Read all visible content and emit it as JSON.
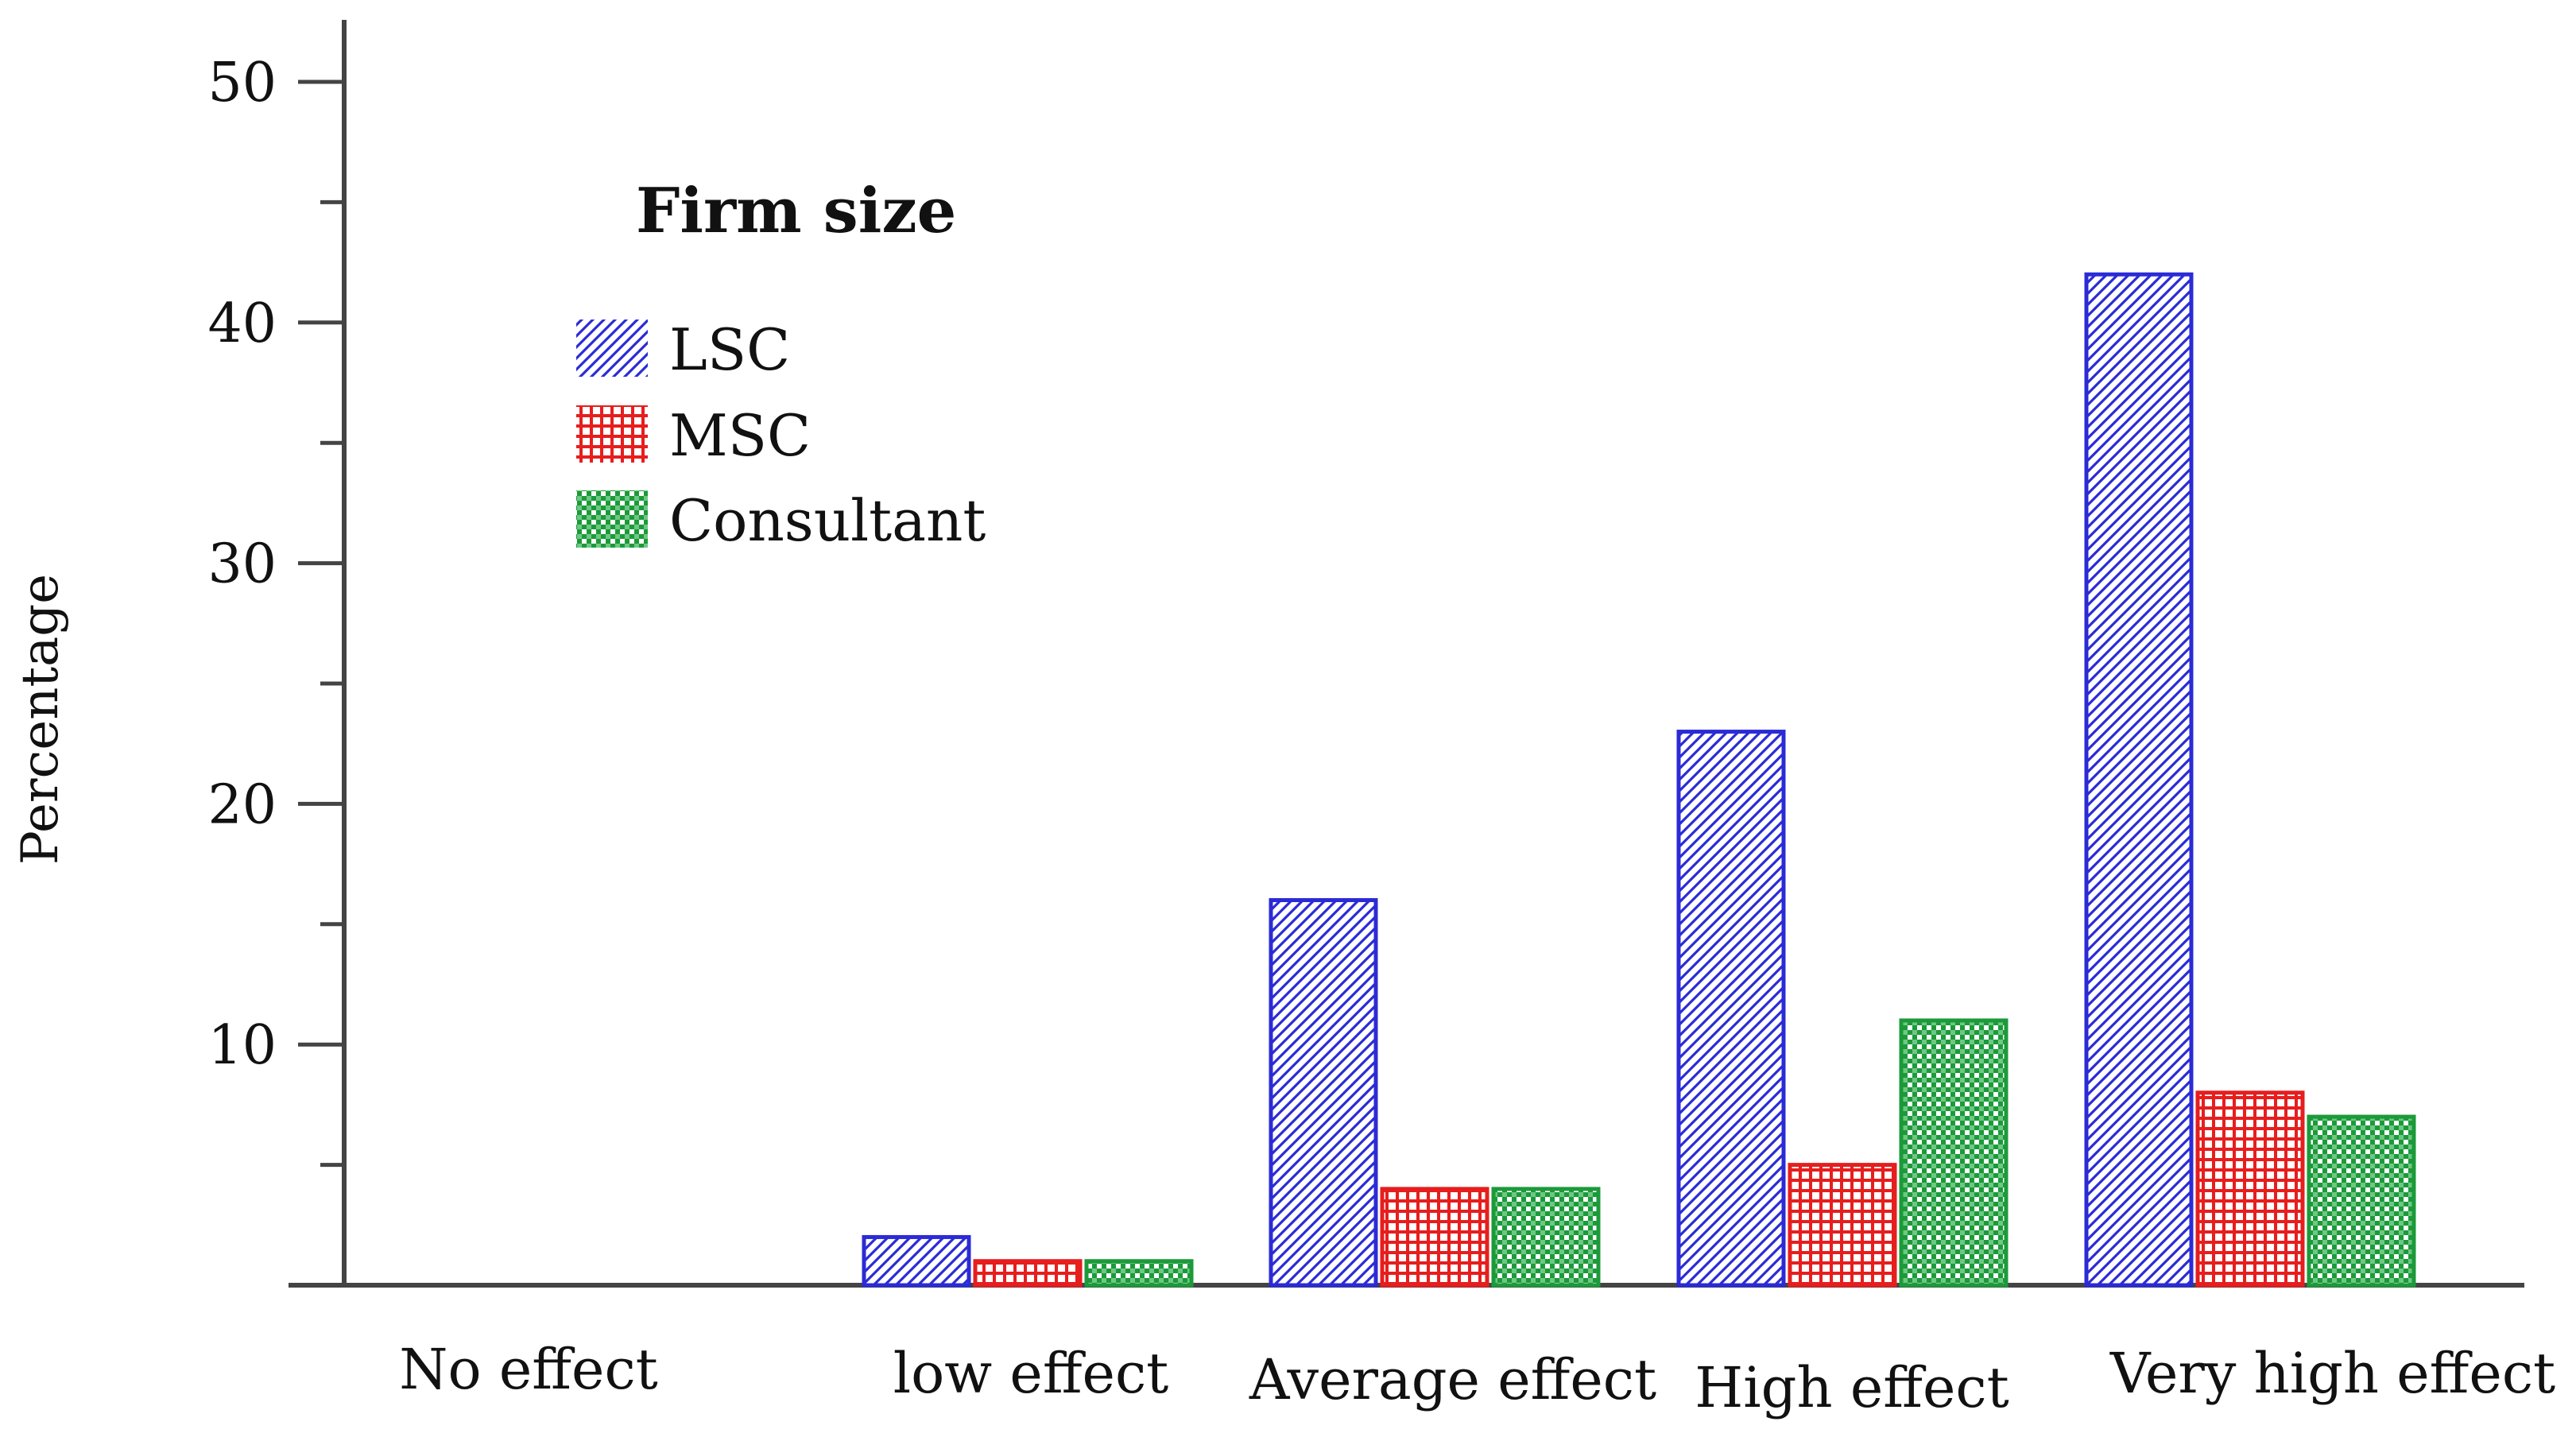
{
  "chart_data": {
    "type": "bar",
    "title": "",
    "xlabel": "",
    "ylabel": "Percentage",
    "ylim": [
      0,
      52
    ],
    "yticks": [
      10,
      20,
      30,
      40,
      50
    ],
    "grid": false,
    "legend": {
      "title": "Firm size",
      "position": "top-left"
    },
    "categories": [
      "No effect",
      "low effect",
      "Average effect",
      "High effect",
      "Very high effect"
    ],
    "series": [
      {
        "name": "LSC",
        "color": "#2b2bd6",
        "pattern": "diagonal-hatch",
        "values": [
          0,
          2,
          16,
          23,
          42
        ]
      },
      {
        "name": "MSC",
        "color": "#e61e1e",
        "pattern": "grid-hatch",
        "values": [
          0,
          1,
          4,
          5,
          8
        ]
      },
      {
        "name": "Consultant",
        "color": "#1c9a3a",
        "pattern": "checker-dots",
        "values": [
          0,
          1,
          4,
          11,
          7
        ]
      }
    ]
  }
}
